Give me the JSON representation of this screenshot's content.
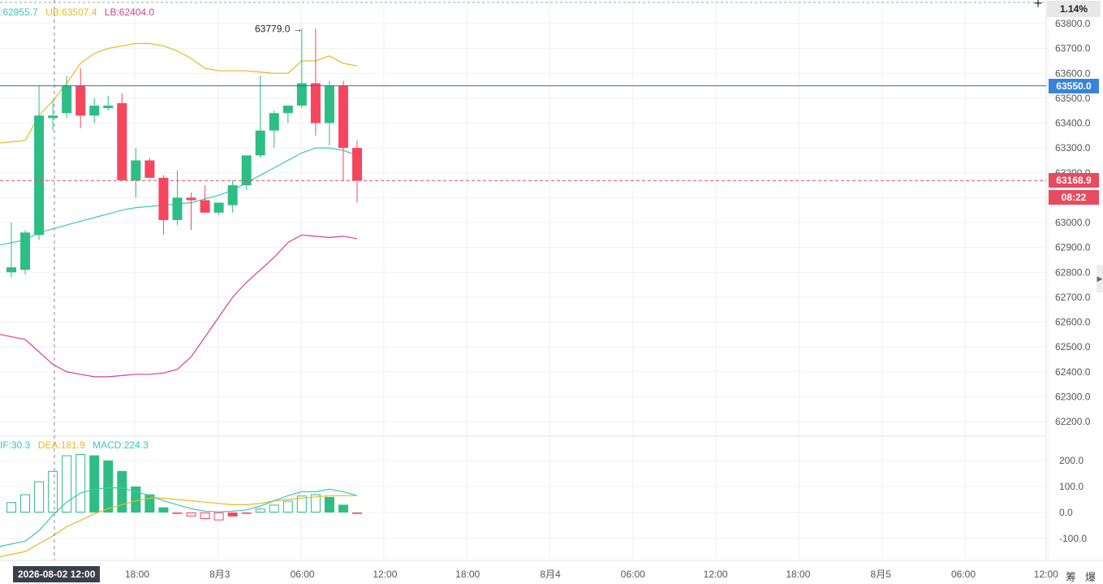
{
  "header": {
    "change_pct": "1.14%"
  },
  "legend_boll": {
    "mb": ":62955.7",
    "ub": "UB:63507.4",
    "lb": "LB:62404.0"
  },
  "legend_macd": {
    "dif": "IF:30.3",
    "dea": "DEA:181.9",
    "macd": "MACD:224.3"
  },
  "price_axis": {
    "ticks": [
      "63800.0",
      "63700.0",
      "63600.0",
      "63500.0",
      "63400.0",
      "63300.0",
      "63200.0",
      "63100.0",
      "63000.0",
      "62900.0",
      "62800.0",
      "62700.0",
      "62600.0",
      "62500.0",
      "62400.0",
      "62300.0",
      "62200.0"
    ]
  },
  "macd_axis": {
    "ticks": [
      "200.0",
      "100.0",
      "0.0",
      "-100.0"
    ]
  },
  "time_axis": {
    "labels": [
      "18:00",
      "8月3",
      "06:00",
      "12:00",
      "18:00",
      "8月4",
      "06:00",
      "12:00",
      "18:00",
      "8月5",
      "06:00",
      "12:00"
    ]
  },
  "crosshair_label": "2026-08-02 12:00",
  "badges": {
    "line_price": "63550.0",
    "last_price": "63168.9",
    "countdown": "08:22"
  },
  "high_annotation": "63779.0 →",
  "bottom_buttons": {
    "chips": "筹",
    "liquidation": "爆"
  },
  "colors": {
    "up": "#2ebd85",
    "down": "#f6465d",
    "mb": "#3cc8b4",
    "ub": "#e8b923",
    "lb": "#d6428f",
    "dif": "#3cc8b4",
    "dea": "#e8b923",
    "hline": "#2f6fb0",
    "last": "#e84a5f",
    "badge_blue": "#3b83d8"
  },
  "chart_data": {
    "type": "candlestick",
    "interval": "1h",
    "y_range": [
      62150,
      63850
    ],
    "candles": [
      {
        "o": 62800,
        "h": 63000,
        "l": 62780,
        "c": 62820
      },
      {
        "o": 62810,
        "h": 62970,
        "l": 62790,
        "c": 62960
      },
      {
        "o": 62950,
        "h": 63550,
        "l": 62930,
        "c": 63430
      },
      {
        "o": 63420,
        "h": 63490,
        "l": 63370,
        "c": 63430
      },
      {
        "o": 63440,
        "h": 63590,
        "l": 63420,
        "c": 63550
      },
      {
        "o": 63550,
        "h": 63620,
        "l": 63380,
        "c": 63430
      },
      {
        "o": 63430,
        "h": 63500,
        "l": 63400,
        "c": 63470
      },
      {
        "o": 63460,
        "h": 63510,
        "l": 63450,
        "c": 63470
      },
      {
        "o": 63480,
        "h": 63520,
        "l": 63170,
        "c": 63170
      },
      {
        "o": 63170,
        "h": 63300,
        "l": 63100,
        "c": 63250
      },
      {
        "o": 63250,
        "h": 63260,
        "l": 63180,
        "c": 63180
      },
      {
        "o": 63180,
        "h": 63190,
        "l": 62950,
        "c": 63010
      },
      {
        "o": 63010,
        "h": 63210,
        "l": 62990,
        "c": 63100
      },
      {
        "o": 63100,
        "h": 63120,
        "l": 62970,
        "c": 63090
      },
      {
        "o": 63090,
        "h": 63150,
        "l": 63040,
        "c": 63040
      },
      {
        "o": 63040,
        "h": 63080,
        "l": 63030,
        "c": 63080
      },
      {
        "o": 63070,
        "h": 63170,
        "l": 63040,
        "c": 63150
      },
      {
        "o": 63150,
        "h": 63260,
        "l": 63130,
        "c": 63270
      },
      {
        "o": 63270,
        "h": 63590,
        "l": 63260,
        "c": 63370
      },
      {
        "o": 63370,
        "h": 63450,
        "l": 63300,
        "c": 63440
      },
      {
        "o": 63440,
        "h": 63470,
        "l": 63400,
        "c": 63470
      },
      {
        "o": 63470,
        "h": 63780,
        "l": 63460,
        "c": 63560
      },
      {
        "o": 63560,
        "h": 63779,
        "l": 63350,
        "c": 63400
      },
      {
        "o": 63400,
        "h": 63570,
        "l": 63310,
        "c": 63550
      },
      {
        "o": 63550,
        "h": 63570,
        "l": 63170,
        "c": 63300
      },
      {
        "o": 63300,
        "h": 63330,
        "l": 63080,
        "c": 63168.9
      }
    ],
    "bollinger": {
      "mb": [
        62910,
        62930,
        62960,
        62975,
        62990,
        63005,
        63020,
        63035,
        63050,
        63060,
        63065,
        63070,
        63075,
        63080,
        63095,
        63110,
        63130,
        63160,
        63190,
        63220,
        63250,
        63280,
        63300,
        63300,
        63290,
        63270
      ],
      "ub": [
        63320,
        63330,
        63430,
        63490,
        63560,
        63640,
        63680,
        63700,
        63710,
        63720,
        63720,
        63710,
        63690,
        63660,
        63620,
        63610,
        63610,
        63610,
        63605,
        63600,
        63600,
        63650,
        63650,
        63670,
        63640,
        63630
      ],
      "lb": [
        62550,
        62530,
        62480,
        62430,
        62400,
        62390,
        62380,
        62380,
        62385,
        62390,
        62390,
        62395,
        62410,
        62460,
        62540,
        62620,
        62700,
        62760,
        62810,
        62860,
        62920,
        62950,
        62945,
        62940,
        62945,
        62935
      ]
    },
    "macd": {
      "y_range": [
        -150,
        260
      ],
      "hist": [
        40,
        70,
        120,
        160,
        220,
        225,
        220,
        200,
        160,
        100,
        70,
        20,
        -5,
        -15,
        -25,
        -30,
        -15,
        -5,
        15,
        30,
        45,
        65,
        70,
        60,
        30,
        -5
      ],
      "dif": [
        -130,
        -110,
        -70,
        -10,
        40,
        75,
        90,
        95,
        95,
        80,
        65,
        45,
        30,
        15,
        5,
        3,
        5,
        10,
        25,
        45,
        65,
        80,
        80,
        90,
        80,
        65
      ],
      "dea": [
        -170,
        -150,
        -120,
        -90,
        -55,
        -30,
        -5,
        15,
        30,
        45,
        55,
        55,
        50,
        45,
        40,
        35,
        30,
        30,
        35,
        45,
        50,
        55,
        60,
        65,
        65,
        65
      ]
    },
    "horizontal_line": 63550.0,
    "last_price": 63168.9,
    "annotations": [
      {
        "label": "63779.0 →",
        "value": 63779.0
      }
    ]
  }
}
